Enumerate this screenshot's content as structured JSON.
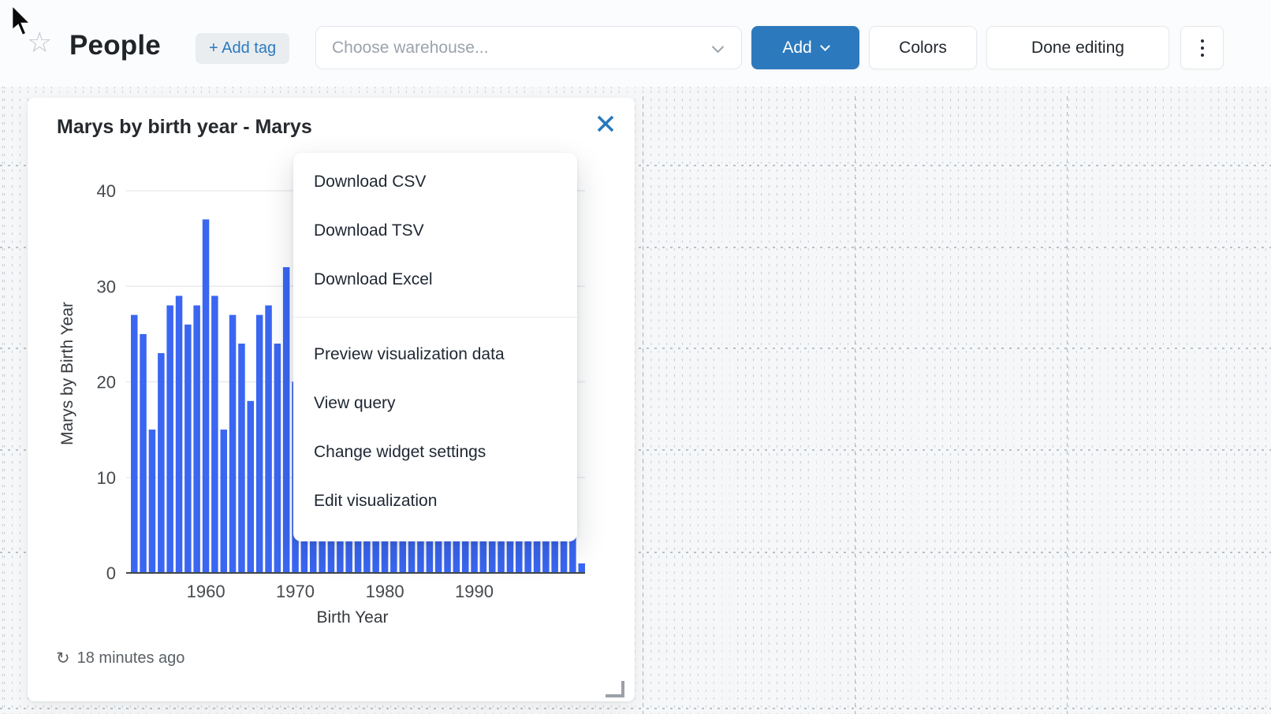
{
  "header": {
    "title": "People",
    "add_tag_label": "+ Add tag",
    "warehouse_placeholder": "Choose warehouse...",
    "add_button_label": "Add",
    "colors_button_label": "Colors",
    "done_editing_label": "Done editing"
  },
  "widget": {
    "title": "Marys by birth year - Marys",
    "last_refreshed": "18 minutes ago"
  },
  "context_menu": {
    "download_items": [
      "Download CSV",
      "Download TSV",
      "Download Excel"
    ],
    "action_items": [
      "Preview visualization data",
      "View query",
      "Change widget settings",
      "Edit visualization"
    ]
  },
  "chart_data": {
    "type": "bar",
    "title": "Marys by birth year - Marys",
    "xlabel": "Birth Year",
    "ylabel": "Marys by Birth Year",
    "ylim": [
      0,
      40
    ],
    "yticks": [
      0,
      10,
      20,
      30,
      40
    ],
    "xticks": [
      1960,
      1970,
      1980,
      1990
    ],
    "bar_color": "#3a66f2",
    "x": [
      1952,
      1953,
      1954,
      1955,
      1956,
      1957,
      1958,
      1959,
      1960,
      1961,
      1962,
      1963,
      1964,
      1965,
      1966,
      1967,
      1968,
      1969,
      1970,
      1971,
      1972,
      1973,
      1974,
      1975,
      1976,
      1977,
      1978,
      1979,
      1980,
      1981,
      1982,
      1983,
      1984,
      1985,
      1986,
      1987,
      1988,
      1989,
      1990,
      1991,
      1992,
      1993,
      1994,
      1995,
      1996,
      1997,
      1998,
      1999,
      2000,
      2001,
      2002
    ],
    "values": [
      27,
      25,
      15,
      23,
      28,
      29,
      26,
      28,
      37,
      29,
      15,
      27,
      24,
      18,
      27,
      28,
      24,
      32,
      null,
      null,
      null,
      null,
      null,
      null,
      null,
      null,
      null,
      null,
      null,
      null,
      null,
      null,
      null,
      null,
      null,
      null,
      null,
      null,
      null,
      null,
      null,
      null,
      null,
      null,
      null,
      null,
      null,
      null,
      null,
      null,
      1
    ]
  },
  "colors": {
    "accent_blue": "#2d79bd",
    "bar_blue": "#3a66f2"
  }
}
